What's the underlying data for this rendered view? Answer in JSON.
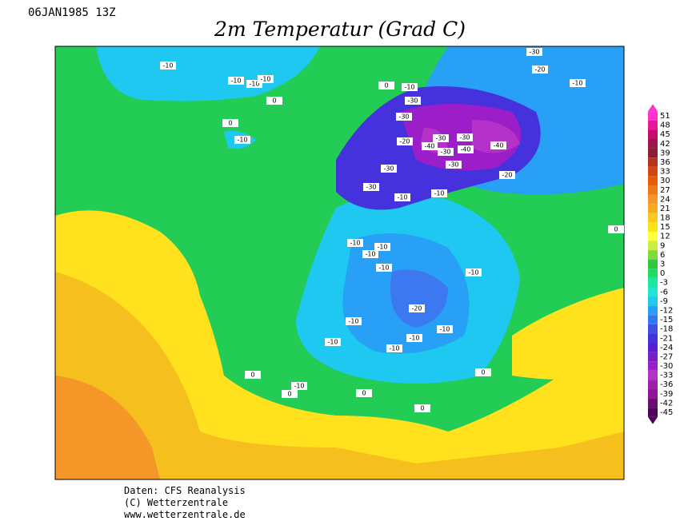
{
  "header": {
    "run": "06JAN1985 13Z",
    "title": "2m Temperatur (Grad C)"
  },
  "map": {
    "labels": [
      -10,
      -10,
      -10,
      -10,
      0,
      0,
      -10,
      -30,
      -30,
      -30,
      -40,
      -20,
      -30,
      -30,
      -40,
      -40,
      -30,
      -30,
      -30,
      -20,
      -10,
      -10,
      -30,
      -20,
      -10,
      0,
      -10,
      0,
      -10,
      -10,
      -10,
      -10,
      -10,
      -20,
      -10,
      -10,
      -10,
      -10,
      -10,
      -10,
      0,
      0,
      0,
      0,
      0
    ]
  },
  "colorbar": {
    "ticks": [
      51,
      48,
      45,
      42,
      39,
      36,
      33,
      30,
      27,
      24,
      21,
      18,
      15,
      12,
      9,
      6,
      3,
      0,
      -3,
      -6,
      -9,
      -12,
      -15,
      -18,
      -21,
      -24,
      -27,
      -30,
      -33,
      -36,
      -39,
      -42,
      -45
    ],
    "colors": [
      "#ff33cc",
      "#e8189a",
      "#c80a6e",
      "#a0144b",
      "#8c1e32",
      "#b4321e",
      "#d24614",
      "#e65a0a",
      "#f07814",
      "#f59628",
      "#faaa1e",
      "#ffc81e",
      "#ffe119",
      "#ffff3c",
      "#c8f03c",
      "#78dc3c",
      "#32c83c",
      "#1edc64",
      "#1ee6a0",
      "#1ee6d2",
      "#1ec8f0",
      "#28a0f5",
      "#3278f0",
      "#3c50e6",
      "#4632dc",
      "#5a1ed2",
      "#781ec8",
      "#9b1ec8",
      "#b432c8",
      "#a01eaa",
      "#8c1496",
      "#6e0a78",
      "#50005a"
    ]
  },
  "footer": {
    "lines": [
      "Daten: CFS Reanalysis",
      "(C) Wetterzentrale",
      "www.wetterzentrale.de"
    ]
  }
}
